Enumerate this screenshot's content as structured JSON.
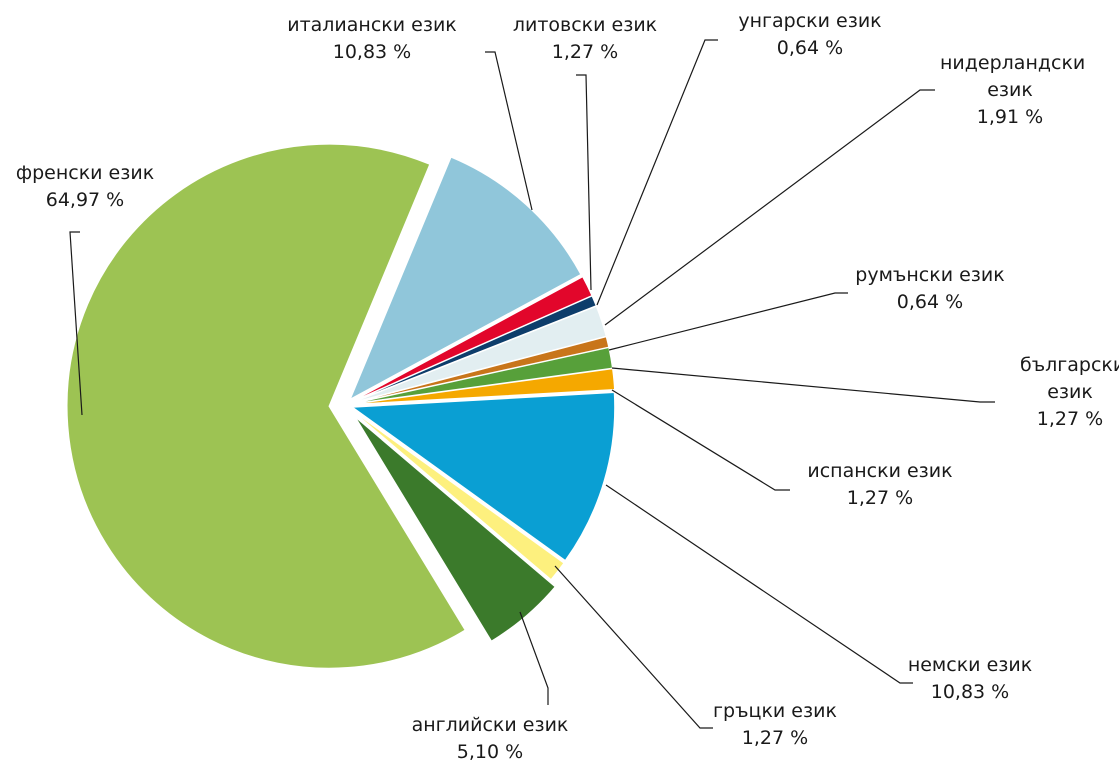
{
  "chart_data": {
    "type": "pie",
    "categories": [
      "френски език",
      "италиански език",
      "литовски език",
      "унгарски език",
      "нидерландски език",
      "румънски език",
      "български език",
      "испански език",
      "немски език",
      "гръцки език",
      "английски език"
    ],
    "values": [
      64.97,
      10.83,
      1.27,
      0.64,
      1.91,
      0.64,
      1.27,
      1.27,
      10.83,
      1.27,
      5.1
    ],
    "value_labels": [
      "64,97 %",
      "10,83 %",
      "1,27 %",
      "0,64 %",
      "1,91 %",
      "0,64 %",
      "1,27 %",
      "1,27 %",
      "10,83 %",
      "1,27 %",
      "5,10 %"
    ],
    "colors": [
      "#9dc353",
      "#90c6da",
      "#e2062b",
      "#0d3d6b",
      "#e2eef1",
      "#c8751a",
      "#57a03a",
      "#f5a800",
      "#0a9fd3",
      "#fdf07e",
      "#3b7a2b"
    ]
  }
}
